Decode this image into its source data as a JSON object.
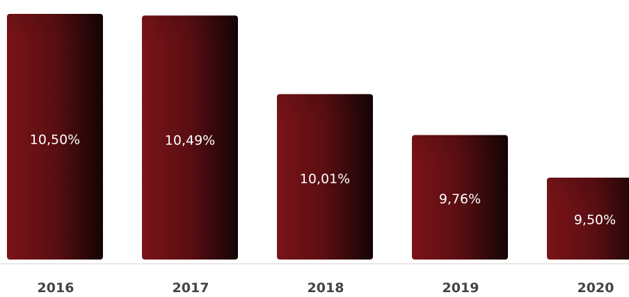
{
  "chart_data": {
    "type": "bar",
    "categories": [
      "2016",
      "2017",
      "2018",
      "2019",
      "2020"
    ],
    "values": [
      10.5,
      10.49,
      10.01,
      9.76,
      9.5
    ],
    "data_labels": [
      "10,50%",
      "10,49%",
      "10,01%",
      "9,76%",
      "9,50%"
    ],
    "title": "",
    "xlabel": "",
    "ylabel": "",
    "grid": false,
    "colors": {
      "bar_light": "#7a1418",
      "bar_dark": "#140405",
      "axis": "#e2e2e2",
      "label_text": "#ffffff",
      "tick_text": "#444444"
    }
  }
}
